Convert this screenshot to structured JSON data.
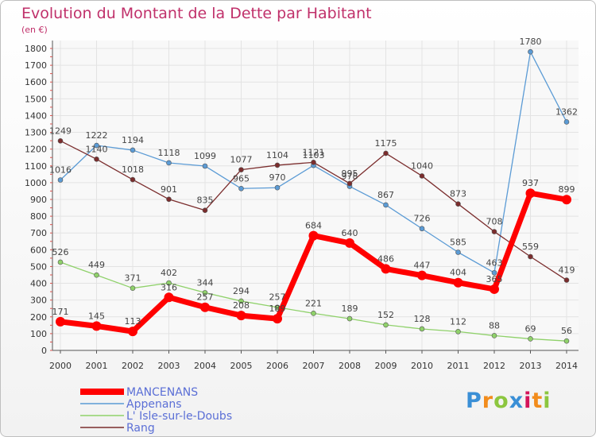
{
  "chart_data": {
    "type": "line",
    "title": "Evolution du Montant de la Dette par Habitant",
    "subtitle": "(en €)",
    "xlabel": "",
    "ylabel": "",
    "ylim": [
      0,
      1800
    ],
    "yticks": [
      0,
      100,
      200,
      300,
      400,
      500,
      600,
      700,
      800,
      900,
      1000,
      1100,
      1200,
      1300,
      1400,
      1500,
      1600,
      1700,
      1800
    ],
    "x": [
      2000,
      2001,
      2002,
      2003,
      2004,
      2005,
      2006,
      2007,
      2008,
      2009,
      2010,
      2011,
      2012,
      2013,
      2014
    ],
    "x_labels": [
      "2000",
      "2001",
      "2002",
      "2003",
      "2004",
      "2005",
      "2006",
      "2007",
      "2008",
      "2009",
      "2010",
      "2011",
      "2012",
      "2013",
      "2014"
    ],
    "grid": true,
    "legend_position": "bottom-left",
    "series": [
      {
        "name": "MANCENANS",
        "color": "#ff0000",
        "style": "thick",
        "values": [
          171,
          145,
          113,
          316,
          257,
          208,
          189,
          684,
          640,
          486,
          447,
          404,
          365,
          937,
          899
        ],
        "value_labels": [
          "171",
          "145",
          "113",
          "316",
          "257",
          "208",
          "189",
          "684",
          "640",
          "486",
          "447",
          "404",
          "365",
          "937",
          "899"
        ]
      },
      {
        "name": "Appenans",
        "color": "#5b9bd5",
        "style": "thin",
        "values": [
          1016,
          1222,
          1194,
          1118,
          1099,
          965,
          970,
          1103,
          978,
          867,
          726,
          585,
          463,
          1780,
          1362
        ],
        "value_labels": [
          "1016",
          "1222",
          "1194",
          "1118",
          "1099",
          "965",
          "970",
          "1103",
          "978",
          "867",
          "726",
          "585",
          "463",
          "1780",
          "1362"
        ]
      },
      {
        "name": "L' Isle-sur-le-Doubs",
        "color": "#8fd16a",
        "style": "thin",
        "values": [
          526,
          449,
          371,
          402,
          344,
          294,
          257,
          221,
          189,
          152,
          128,
          112,
          88,
          69,
          56
        ],
        "value_labels": [
          "526",
          "449",
          "371",
          "402",
          "344",
          "294",
          "257",
          "221",
          "189",
          "152",
          "128",
          "112",
          "88",
          "69",
          "56"
        ]
      },
      {
        "name": "Rang",
        "color": "#7b2d2d",
        "style": "thin",
        "values": [
          1249,
          1140,
          1018,
          901,
          835,
          1077,
          1104,
          1121,
          995,
          1175,
          1040,
          873,
          708,
          559,
          419
        ],
        "value_labels": [
          "1249",
          "1140",
          "1018",
          "901",
          "835",
          "1077",
          "1104",
          "1121",
          "995",
          "1175",
          "1040",
          "873",
          "708",
          "559",
          "419"
        ]
      }
    ]
  },
  "logo": {
    "text": "Proxiti",
    "colors": [
      "#3a8fd6",
      "#f28c1c",
      "#8cc63f",
      "#3a8fd6",
      "#d4145a",
      "#f28c1c",
      "#8cc63f"
    ]
  }
}
